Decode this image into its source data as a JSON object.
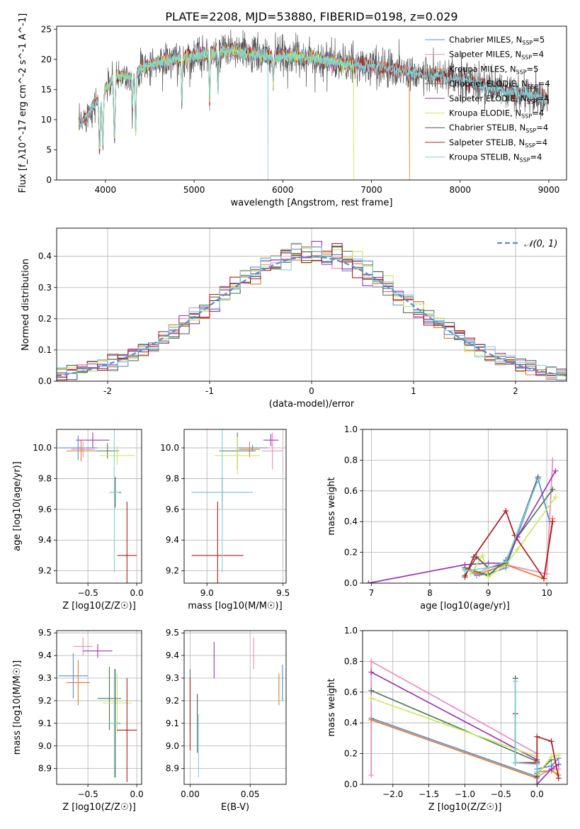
{
  "figure": {
    "title": "PLATE=2208, MJD=53880, FIBERID=0198, z=0.029"
  },
  "colors": {
    "Chabrier MILES": "#5b8bd0",
    "Salpeter MILES": "#e88cbf",
    "Kroupa MILES": "#e07b2a",
    "Chabrier ELODIE": "#4a7a55",
    "Salpeter ELODIE": "#9b36b5",
    "Kroupa ELODIE": "#cde85a",
    "Chabrier STELIB": "#555555",
    "Salpeter STELIB": "#b01c1c",
    "Kroupa STELIB": "#79d4da",
    "gaussian": "#5b8bd0"
  },
  "chart_data": [
    {
      "id": "spectrum",
      "type": "line",
      "xlabel": "wavelength [Angstrom, rest frame]",
      "ylabel": "Flux [f_λ10^-17 erg cm^-2 s^-1 A^-1]",
      "xlim": [
        3450,
        9200
      ],
      "ylim": [
        0,
        25.5
      ],
      "xticks": [
        4000,
        5000,
        6000,
        7000,
        8000,
        9000
      ],
      "yticks": [
        0,
        5,
        10,
        15,
        20,
        25
      ],
      "legend_position": "top-right",
      "legend": [
        {
          "name": "Chabrier MILES",
          "main": "Chabrier MILES, N",
          "sub": "SSP",
          "rest": "=5"
        },
        {
          "name": "Salpeter MILES",
          "main": "Salpeter MILES, N",
          "sub": "SSP",
          "rest": "=4"
        },
        {
          "name": "Kroupa MILES",
          "main": "Kroupa MILES, N",
          "sub": "SSP",
          "rest": "=5"
        },
        {
          "name": "Chabrier ELODIE",
          "main": "Chabrier ELODIE, N",
          "sub": "SSP",
          "rest": "=4"
        },
        {
          "name": "Salpeter ELODIE",
          "main": "Salpeter ELODIE, N",
          "sub": "SSP",
          "rest": "=4"
        },
        {
          "name": "Kroupa ELODIE",
          "main": "Kroupa ELODIE, N",
          "sub": "SSP",
          "rest": "=4"
        },
        {
          "name": "Chabrier STELIB",
          "main": "Chabrier STELIB, N",
          "sub": "SSP",
          "rest": "=4"
        },
        {
          "name": "Salpeter STELIB",
          "main": "Salpeter STELIB, N",
          "sub": "SSP",
          "rest": "=4"
        },
        {
          "name": "Kroupa STELIB",
          "main": "Kroupa STELIB, N",
          "sub": "SSP",
          "rest": "=4"
        }
      ],
      "continuum": {
        "x": [
          3700,
          3800,
          3900,
          4000,
          4100,
          4200,
          4300,
          4400,
          4600,
          4800,
          5000,
          5200,
          5400,
          5600,
          5800,
          6000,
          6200,
          6400,
          6600,
          6800,
          7000,
          7200,
          7400,
          7600,
          7800,
          8000,
          8200,
          8400,
          8600,
          8800,
          9000
        ],
        "y": [
          9,
          11,
          13,
          15,
          17,
          17.5,
          17,
          18.5,
          19.5,
          20,
          20.5,
          21,
          21.5,
          21,
          20.5,
          20.5,
          20.5,
          20,
          19.5,
          19,
          19,
          18.5,
          18,
          17.5,
          17,
          16.5,
          16,
          15,
          14.5,
          14,
          13.5
        ]
      },
      "dips": [
        {
          "x": 3934,
          "y": 5
        },
        {
          "x": 3970,
          "y": 6
        },
        {
          "x": 4102,
          "y": 7
        },
        {
          "x": 4304,
          "y": 12
        },
        {
          "x": 4341,
          "y": 8
        },
        {
          "x": 4862,
          "y": 13
        },
        {
          "x": 5175,
          "y": 13
        },
        {
          "x": 5270,
          "y": 15
        },
        {
          "x": 5893,
          "y": 16
        }
      ],
      "sharp_drops": [
        {
          "name": "Kroupa STELIB",
          "x": 5832,
          "y": 0
        },
        {
          "name": "Kroupa ELODIE",
          "x": 6800,
          "y": 0
        },
        {
          "name": "Kroupa ELODIE",
          "x": 3890,
          "y": 0
        },
        {
          "name": "Kroupa MILES",
          "x": 7430,
          "y": 0
        }
      ],
      "model_ranges": {
        "MILES": [
          3700,
          7430
        ],
        "ELODIE": [
          3890,
          6800
        ],
        "STELIB": [
          3700,
          9000
        ]
      }
    },
    {
      "id": "residuals",
      "type": "histogram",
      "xlabel": "(data-model)/error",
      "ylabel": "Normed distribution",
      "xlim": [
        -2.5,
        2.5
      ],
      "ylim": [
        0,
        0.49
      ],
      "xticks": [
        -2,
        -1,
        0,
        1,
        2
      ],
      "yticks": [
        0.0,
        0.1,
        0.2,
        0.3,
        0.4
      ],
      "grid": true,
      "legend_position": "top-right",
      "gaussian_label": "𝒩(0, 1)",
      "bin_width": 0.1,
      "gaussian": {
        "mean": 0,
        "sigma": 1
      }
    },
    {
      "id": "age-vs-Z",
      "type": "errorbar",
      "xlabel": "Z [log10(Z/Z☉)]",
      "ylabel": "age  [log10(age/yr)]",
      "xlim": [
        -0.82,
        0.05
      ],
      "ylim": [
        9.12,
        10.12
      ],
      "xticks": [
        -0.5,
        0.0
      ],
      "xticklabels": [
        "−0.5",
        "0.0"
      ],
      "yticks": [
        9.2,
        9.4,
        9.6,
        9.8,
        10.0
      ],
      "grid": true,
      "points": [
        {
          "name": "Chabrier MILES",
          "x": -0.6,
          "xerr": 0.2,
          "y": 10.0,
          "yerr": 0.08
        },
        {
          "name": "Salpeter MILES",
          "x": -0.55,
          "xerr": 0.12,
          "y": 9.99,
          "yerr": 0.05
        },
        {
          "name": "Kroupa MILES",
          "x": -0.57,
          "xerr": 0.15,
          "y": 9.98,
          "yerr": 0.07
        },
        {
          "name": "Chabrier ELODIE",
          "x": -0.3,
          "xerr": 0.12,
          "y": 9.98,
          "yerr": 0.05
        },
        {
          "name": "Salpeter ELODIE",
          "x": -0.45,
          "xerr": 0.17,
          "y": 10.05,
          "yerr": 0.05
        },
        {
          "name": "Kroupa ELODIE",
          "x": -0.2,
          "xerr": 0.18,
          "y": 9.95,
          "yerr": 0.06
        },
        {
          "name": "Chabrier STELIB",
          "x": -0.22,
          "xerr": 0.06,
          "y": 9.71,
          "yerr": 0.1
        },
        {
          "name": "Salpeter STELIB",
          "x": -0.1,
          "xerr": 0.1,
          "y": 9.3,
          "yerr": 0.35
        },
        {
          "name": "Kroupa STELIB",
          "x": -0.23,
          "xerr": 0.05,
          "y": 9.71,
          "yerr": 0.52
        }
      ]
    },
    {
      "id": "age-vs-mass",
      "type": "errorbar",
      "xlabel": "mass [log10(M/M☉)]",
      "ylabel": "",
      "xlim": [
        8.85,
        9.52
      ],
      "ylim": [
        9.12,
        10.12
      ],
      "xticks": [
        9.0,
        9.5
      ],
      "xticklabels": [
        "9.0",
        "9.5"
      ],
      "yticks": [
        9.2,
        9.4,
        9.6,
        9.8,
        10.0
      ],
      "grid": true,
      "points": [
        {
          "name": "Chabrier MILES",
          "x": 9.3,
          "xerr": 0.1,
          "y": 10.0,
          "yerr": 0.02
        },
        {
          "name": "Salpeter MILES",
          "x": 9.43,
          "xerr": 0.07,
          "y": 9.98,
          "yerr": 0.12
        },
        {
          "name": "Kroupa MILES",
          "x": 9.28,
          "xerr": 0.07,
          "y": 9.99,
          "yerr": 0.05
        },
        {
          "name": "Chabrier ELODIE",
          "x": 9.2,
          "xerr": 0.12,
          "y": 9.98,
          "yerr": 0.12
        },
        {
          "name": "Salpeter ELODIE",
          "x": 9.42,
          "xerr": 0.05,
          "y": 10.05,
          "yerr": 0.04
        },
        {
          "name": "Kroupa ELODIE",
          "x": 9.2,
          "xerr": 0.15,
          "y": 9.95,
          "yerr": 0.12
        },
        {
          "name": "Chabrier STELIB",
          "x": 9.1,
          "xerr": 0.2,
          "y": 9.71,
          "yerr": 0.1
        },
        {
          "name": "Salpeter STELIB",
          "x": 9.07,
          "xerr": 0.17,
          "y": 9.3,
          "yerr": 0.35
        },
        {
          "name": "Kroupa STELIB",
          "x": 9.1,
          "xerr": 0.2,
          "y": 9.71,
          "yerr": 0.52
        }
      ]
    },
    {
      "id": "massweight-vs-age",
      "type": "line",
      "xlabel": "age  [log10(age/yr)]",
      "ylabel": "mass weight",
      "xlim": [
        6.85,
        10.35
      ],
      "ylim": [
        0,
        1
      ],
      "xticks": [
        7,
        8,
        9,
        10
      ],
      "xticklabels": [
        "7",
        "8",
        "9",
        "10"
      ],
      "yticks": [
        0.0,
        0.2,
        0.4,
        0.6,
        0.8,
        1.0
      ],
      "grid": true,
      "series": [
        {
          "name": "Chabrier MILES",
          "x": [
            8.6,
            8.8,
            9.0,
            9.3,
            9.85,
            10.05
          ],
          "y": [
            0.1,
            0.05,
            0.06,
            0.1,
            0.68,
            0.4
          ]
        },
        {
          "name": "Salpeter MILES",
          "x": [
            8.7,
            8.8,
            9.0,
            9.3,
            10.0,
            10.1
          ],
          "y": [
            0.08,
            0.06,
            0.1,
            0.12,
            0.06,
            0.8
          ]
        },
        {
          "name": "Kroupa MILES",
          "x": [
            8.6,
            8.85,
            9.0,
            9.3,
            9.95,
            10.1
          ],
          "y": [
            0.09,
            0.06,
            0.08,
            0.12,
            0.03,
            0.42
          ]
        },
        {
          "name": "Chabrier ELODIE",
          "x": [
            8.6,
            9.0,
            9.3,
            9.5,
            10.1
          ],
          "y": [
            0.1,
            0.05,
            0.15,
            0.3,
            0.61
          ]
        },
        {
          "name": "Salpeter ELODIE",
          "x": [
            6.95,
            8.6,
            9.0,
            9.3,
            9.5,
            10.15
          ],
          "y": [
            0.0,
            0.12,
            0.13,
            0.13,
            0.3,
            0.73
          ]
        },
        {
          "name": "Kroupa ELODIE",
          "x": [
            8.7,
            8.9,
            9.0,
            9.3,
            9.5,
            10.15
          ],
          "y": [
            0.06,
            0.18,
            0.04,
            0.12,
            0.22,
            0.56
          ]
        },
        {
          "name": "Chabrier STELIB",
          "x": [
            8.6,
            8.8,
            9.0,
            9.3,
            9.85
          ],
          "y": [
            0.05,
            0.17,
            0.1,
            0.13,
            0.69
          ]
        },
        {
          "name": "Salpeter STELIB",
          "x": [
            8.6,
            8.75,
            9.3,
            9.45,
            9.95,
            10.1
          ],
          "y": [
            0.04,
            0.17,
            0.47,
            0.31,
            0.03,
            0.4
          ]
        },
        {
          "name": "Kroupa STELIB",
          "x": [
            8.6,
            9.0,
            9.3,
            9.85
          ],
          "y": [
            0.08,
            0.1,
            0.14,
            0.67
          ]
        }
      ]
    },
    {
      "id": "mass-vs-Z",
      "type": "errorbar",
      "xlabel": "Z [log10(Z/Z☉)]",
      "ylabel": "mass [log10(M/M☉)]",
      "xlim": [
        -0.82,
        0.05
      ],
      "ylim": [
        8.83,
        9.51
      ],
      "xticks": [
        -0.5,
        0.0
      ],
      "xticklabels": [
        "−0.5",
        "0.0"
      ],
      "yticks": [
        8.9,
        9.0,
        9.1,
        9.2,
        9.3,
        9.4,
        9.5
      ],
      "grid": true,
      "points": [
        {
          "name": "Chabrier MILES",
          "x": -0.65,
          "xerr": 0.15,
          "y": 9.31,
          "yerr": 0.1
        },
        {
          "name": "Salpeter MILES",
          "x": -0.55,
          "xerr": 0.1,
          "y": 9.44,
          "yerr": 0.04
        },
        {
          "name": "Kroupa MILES",
          "x": -0.6,
          "xerr": 0.12,
          "y": 9.28,
          "yerr": 0.1
        },
        {
          "name": "Chabrier ELODIE",
          "x": -0.28,
          "xerr": 0.12,
          "y": 9.21,
          "yerr": 0.14
        },
        {
          "name": "Salpeter ELODIE",
          "x": -0.4,
          "xerr": 0.15,
          "y": 9.42,
          "yerr": 0.03
        },
        {
          "name": "Kroupa ELODIE",
          "x": -0.2,
          "xerr": 0.15,
          "y": 9.19,
          "yerr": 0.13
        },
        {
          "name": "Chabrier STELIB",
          "x": -0.22,
          "xerr": 0.05,
          "y": 9.1,
          "yerr": 0.24
        },
        {
          "name": "Salpeter STELIB",
          "x": -0.1,
          "xerr": 0.1,
          "y": 9.07,
          "yerr": 0.23
        },
        {
          "name": "Kroupa STELIB",
          "x": -0.23,
          "xerr": 0.05,
          "y": 9.1,
          "yerr": 0.24
        }
      ]
    },
    {
      "id": "mass-vs-EBV",
      "type": "errorbar",
      "xlabel": "E(B-V)",
      "ylabel": "",
      "xlim": [
        -0.005,
        0.08
      ],
      "ylim": [
        8.83,
        9.51
      ],
      "xticks": [
        0.0,
        0.05
      ],
      "xticklabels": [
        "0.00",
        "0.05"
      ],
      "yticks": [
        8.9,
        9.0,
        9.1,
        9.2,
        9.3,
        9.4,
        9.5
      ],
      "grid": true,
      "points": [
        {
          "name": "Chabrier MILES",
          "x": 0.077,
          "xerr": 0,
          "y": 9.28,
          "yerr": 0.08
        },
        {
          "name": "Salpeter MILES",
          "x": 0.053,
          "xerr": 0,
          "y": 9.41,
          "yerr": 0.07
        },
        {
          "name": "Kroupa MILES",
          "x": 0.074,
          "xerr": 0,
          "y": 9.25,
          "yerr": 0.07
        },
        {
          "name": "Chabrier ELODIE",
          "x": 0.0,
          "xerr": 0,
          "y": 9.2,
          "yerr": 0.14
        },
        {
          "name": "Salpeter ELODIE",
          "x": 0.02,
          "xerr": 0,
          "y": 9.38,
          "yerr": 0.08
        },
        {
          "name": "Kroupa ELODIE",
          "x": 0.0,
          "xerr": 0,
          "y": 9.18,
          "yerr": 0.12
        },
        {
          "name": "Chabrier STELIB",
          "x": 0.006,
          "xerr": 0,
          "y": 9.1,
          "yerr": 0.13
        },
        {
          "name": "Salpeter STELIB",
          "x": 0.0,
          "xerr": 0,
          "y": 9.14,
          "yerr": 0.16
        },
        {
          "name": "Kroupa STELIB",
          "x": 0.007,
          "xerr": 0,
          "y": 9.0,
          "yerr": 0.14
        }
      ]
    },
    {
      "id": "massweight-vs-Z",
      "type": "line",
      "xlabel": "Z [log10(Z/Z☉)]",
      "ylabel": "mass weight",
      "xlim": [
        -2.42,
        0.42
      ],
      "ylim": [
        0,
        1
      ],
      "xticks": [
        -2.0,
        -1.5,
        -1.0,
        -0.5,
        0.0
      ],
      "xticklabels": [
        "−2.0",
        "−1.5",
        "−1.0",
        "−0.5",
        "0.0"
      ],
      "yticks": [
        0.0,
        0.2,
        0.4,
        0.6,
        0.8,
        1.0
      ],
      "grid": true,
      "series": [
        {
          "name": "Chabrier MILES",
          "x": [
            -2.3,
            0.0,
            0.0,
            0.2,
            0.3
          ],
          "y": [
            0.43,
            0.05,
            0.1,
            0.12,
            0.17
          ]
        },
        {
          "name": "Salpeter MILES",
          "x": [
            -2.3,
            -2.3,
            0.0,
            0.0,
            0.2,
            0.3
          ],
          "y": [
            0.06,
            0.8,
            0.2,
            0.05,
            0.1,
            0.1
          ]
        },
        {
          "name": "Kroupa MILES",
          "x": [
            -2.3,
            0.0,
            0.0,
            0.2,
            0.3
          ],
          "y": [
            0.42,
            0.04,
            0.08,
            0.09,
            0.06
          ]
        },
        {
          "name": "Chabrier ELODIE",
          "x": [
            -2.3,
            0.0,
            0.0,
            0.2
          ],
          "y": [
            0.61,
            0.15,
            0.07,
            0.16
          ]
        },
        {
          "name": "Salpeter ELODIE",
          "x": [
            -2.3,
            0.0,
            0.0,
            0.2,
            0.3
          ],
          "y": [
            0.73,
            0.16,
            0.0,
            0.1,
            0.13
          ]
        },
        {
          "name": "Kroupa ELODIE",
          "x": [
            -2.3,
            0.0,
            0.0,
            0.2,
            0.3
          ],
          "y": [
            0.56,
            0.18,
            0.06,
            0.18,
            0.19
          ]
        },
        {
          "name": "Chabrier STELIB",
          "x": [
            -0.3,
            -0.3,
            0.0,
            0.0
          ],
          "y": [
            0.69,
            0.14,
            0.14,
            0.05
          ]
        },
        {
          "name": "Salpeter STELIB",
          "x": [
            -0.3,
            -0.3,
            0.0,
            0.0,
            0.2,
            0.3
          ],
          "y": [
            0.46,
            0.14,
            0.14,
            0.31,
            0.28,
            0.04
          ]
        },
        {
          "name": "Kroupa STELIB",
          "x": [
            -0.3,
            -0.3,
            0.0,
            0.0
          ],
          "y": [
            0.67,
            0.14,
            0.13,
            0.08
          ]
        }
      ]
    }
  ]
}
